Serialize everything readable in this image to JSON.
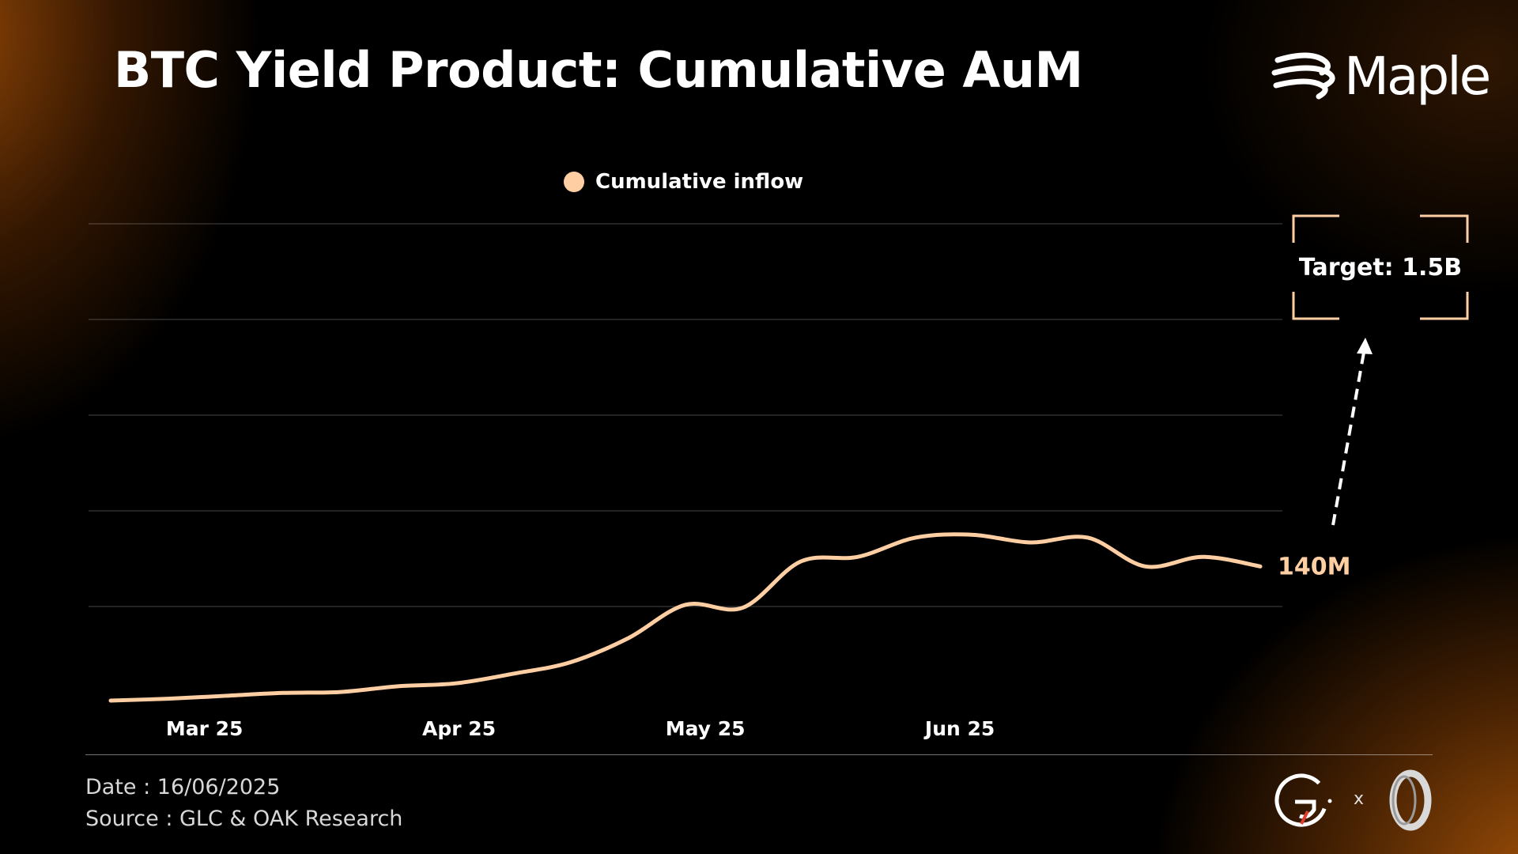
{
  "header": {
    "title": "BTC Yield Product: Cumulative AuM",
    "brand": "Maple"
  },
  "colors": {
    "series": "#FFCFA3",
    "background": "#000000",
    "accent": "#B0600A"
  },
  "chart_data": {
    "type": "line",
    "title": "BTC Yield Product: Cumulative AuM",
    "xlabel": "",
    "ylabel": "",
    "x_tick_labels": [
      "Mar 25",
      "Apr 25",
      "May 25",
      "Jun 25"
    ],
    "ylim": [
      0,
      500
    ],
    "grid": true,
    "legend_position": "top-center",
    "series": [
      {
        "name": "Cumulative inflow",
        "x": [
          "2025-02-17",
          "2025-02-24",
          "2025-03-03",
          "2025-03-10",
          "2025-03-17",
          "2025-03-24",
          "2025-03-31",
          "2025-04-07",
          "2025-04-14",
          "2025-04-21",
          "2025-04-28",
          "2025-05-05",
          "2025-05-12",
          "2025-05-19",
          "2025-05-26",
          "2025-06-02",
          "2025-06-09",
          "2025-06-16",
          "2025-06-23",
          "2025-06-30",
          "2025-07-07"
        ],
        "y": [
          0,
          2,
          5,
          8,
          9,
          15,
          18,
          28,
          40,
          65,
          100,
          97,
          145,
          150,
          170,
          173,
          165,
          170,
          140,
          150,
          140
        ]
      }
    ],
    "annotations": [
      {
        "label": "140M"
      },
      {
        "label": "Target: 1.5B"
      }
    ]
  },
  "footer": {
    "date": "Date : 16/06/2025",
    "source": "Source : GLC & OAK Research",
    "separator": "x"
  }
}
